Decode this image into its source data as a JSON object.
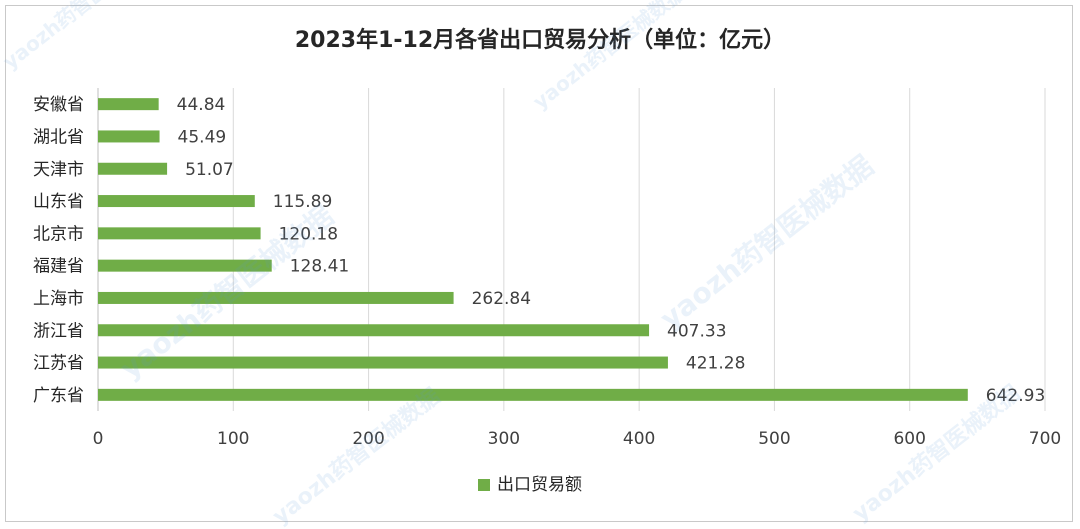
{
  "chart_data": {
    "type": "bar",
    "orientation": "horizontal",
    "title": "2023年1-12月各省出口贸易分析（单位：亿元）",
    "categories": [
      "安徽省",
      "湖北省",
      "天津市",
      "山东省",
      "北京市",
      "福建省",
      "上海市",
      "浙江省",
      "江苏省",
      "广东省"
    ],
    "series": [
      {
        "name": "出口贸易额",
        "values": [
          44.84,
          45.49,
          51.07,
          115.89,
          120.18,
          128.41,
          262.84,
          407.33,
          421.28,
          642.93
        ]
      }
    ],
    "value_labels": [
      "44.84",
      "45.49",
      "51.07",
      "115.89",
      "120.18",
      "128.41",
      "262.84",
      "407.33",
      "421.28",
      "642.93"
    ],
    "xlim": [
      0,
      700
    ],
    "xticks": [
      0,
      100,
      200,
      300,
      400,
      500,
      600,
      700
    ],
    "xtick_labels": [
      "0",
      "100",
      "200",
      "300",
      "400",
      "500",
      "600",
      "700"
    ],
    "grid": "vertical",
    "legend_position": "bottom",
    "bar_color": "#70ad47",
    "watermark": "yaozh药智医械数据"
  }
}
